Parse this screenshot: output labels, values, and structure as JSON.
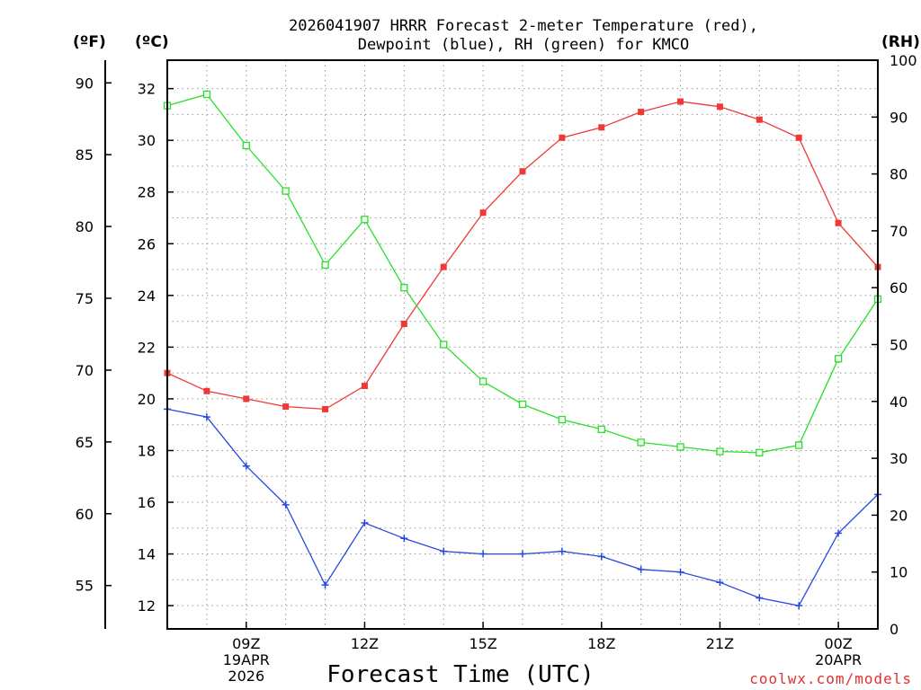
{
  "chart_data": {
    "type": "line",
    "title": [
      "2026041907 HRRR Forecast 2-meter Temperature (red),",
      "Dewpoint (blue), RH (green) for KMCO"
    ],
    "xlabel": "Forecast Time (UTC)",
    "credit": "coolwx.com/models",
    "units": {
      "fahrenheit": "(ºF)",
      "celsius": "(ºC)",
      "rh": "(RH)"
    },
    "x_hours": [
      7,
      8,
      9,
      10,
      11,
      12,
      13,
      14,
      15,
      16,
      17,
      18,
      19,
      20,
      21,
      22,
      23,
      24,
      25
    ],
    "xlim": [
      7,
      25
    ],
    "x_ticks": [
      {
        "x": 9,
        "lines": [
          "09Z",
          "19APR",
          "2026"
        ]
      },
      {
        "x": 12,
        "lines": [
          "12Z"
        ]
      },
      {
        "x": 15,
        "lines": [
          "15Z"
        ]
      },
      {
        "x": 18,
        "lines": [
          "18Z"
        ]
      },
      {
        "x": 21,
        "lines": [
          "21Z"
        ]
      },
      {
        "x": 24,
        "lines": [
          "00Z",
          "20APR"
        ]
      }
    ],
    "celsius_axis": {
      "ylim": [
        11.1,
        33.1
      ],
      "ticks": [
        12,
        14,
        16,
        18,
        20,
        22,
        24,
        26,
        28,
        30,
        32
      ],
      "grid": [
        13,
        15,
        17,
        19,
        21,
        23,
        25,
        27,
        29,
        31
      ]
    },
    "fahrenheit_axis": {
      "ticks": [
        55,
        60,
        65,
        70,
        75,
        80,
        85,
        90
      ]
    },
    "rh_axis": {
      "ylim": [
        0,
        100
      ],
      "ticks": [
        0,
        10,
        20,
        30,
        40,
        50,
        60,
        70,
        80,
        90,
        100
      ]
    },
    "series": [
      {
        "name": "Temperature",
        "axis": "celsius",
        "color": "#f03838",
        "marker": "filled-square",
        "values": [
          21.0,
          20.3,
          20.0,
          19.7,
          19.6,
          20.5,
          22.9,
          25.1,
          27.2,
          28.8,
          30.1,
          30.5,
          31.1,
          31.5,
          31.3,
          30.8,
          30.1,
          26.8,
          25.1
        ]
      },
      {
        "name": "Dewpoint",
        "axis": "celsius",
        "color": "#2848e0",
        "marker": "plus",
        "values": [
          19.6,
          19.3,
          17.4,
          15.9,
          12.8,
          15.2,
          14.6,
          14.1,
          14.0,
          14.0,
          14.1,
          13.9,
          13.4,
          13.3,
          12.9,
          12.3,
          12.0,
          14.8,
          16.3
        ]
      },
      {
        "name": "RH",
        "axis": "rh",
        "color": "#28e028",
        "marker": "open-square",
        "values": [
          92,
          94,
          85,
          77,
          64,
          72,
          60,
          50,
          43.5,
          39.5,
          36.8,
          35.1,
          32.8,
          32,
          31.2,
          31,
          32.3,
          47.5,
          58
        ]
      }
    ]
  }
}
